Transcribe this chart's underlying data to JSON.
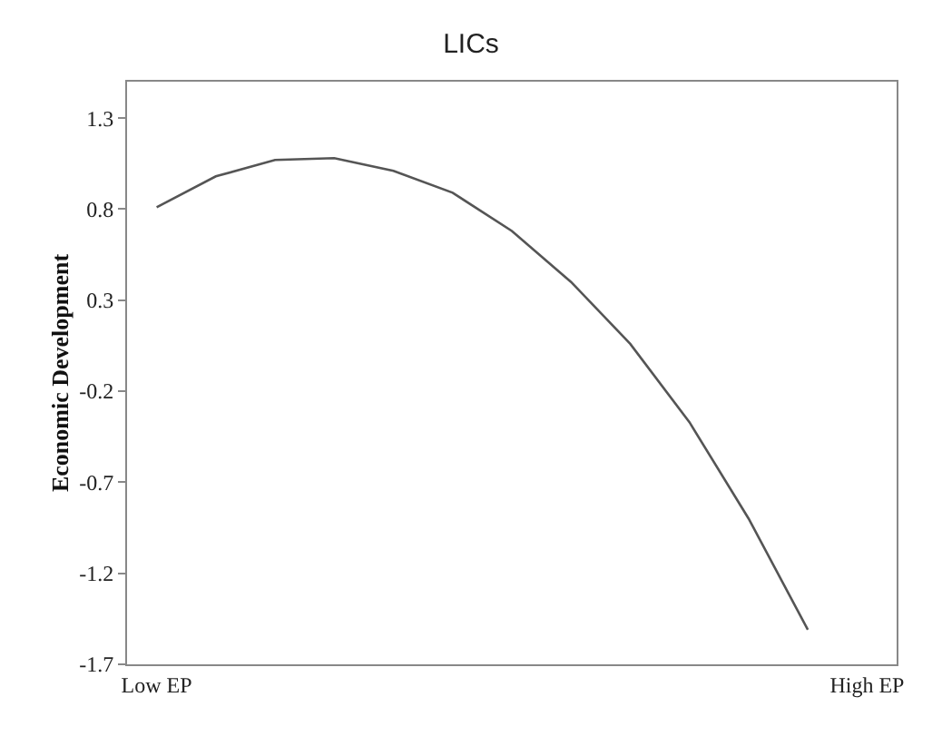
{
  "chart_data": {
    "type": "line",
    "title": "LICs",
    "ylabel": "Economic Development",
    "categories": [
      "Low EP",
      null,
      null,
      null,
      null,
      null,
      null,
      null,
      null,
      null,
      null,
      null,
      "High EP"
    ],
    "series": [
      {
        "color": "#555555",
        "values": [
          0.81,
          0.98,
          1.07,
          1.08,
          1.01,
          0.89,
          0.68,
          0.4,
          0.06,
          -0.37,
          -0.9,
          -1.51,
          null
        ]
      }
    ],
    "ylim": [
      -1.7,
      1.5
    ],
    "yticks": [
      1.3,
      0.8,
      0.3,
      -0.2,
      -0.7,
      -1.2,
      -1.7
    ],
    "marker": "none",
    "line_style": "solid"
  }
}
